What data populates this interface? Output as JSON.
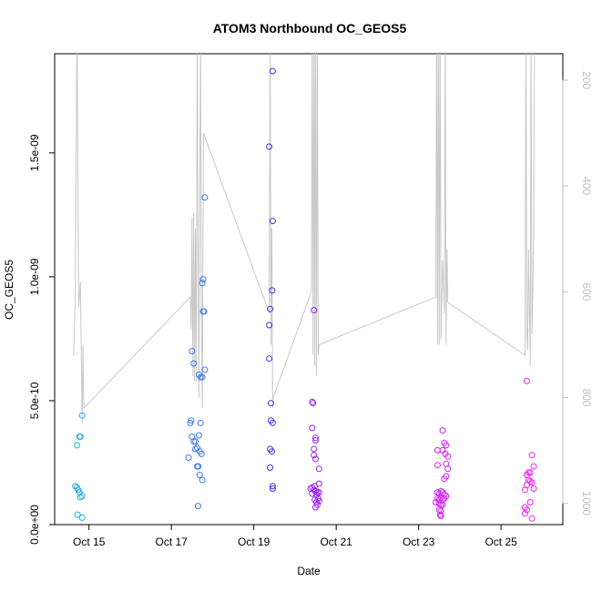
{
  "chart_data": {
    "type": "scatter",
    "title": "ATOM3 Northbound OC_GEOS5",
    "xlabel": "Date",
    "ylabel": "OC_GEOS5",
    "xlim": [
      "2017-10-14 04:00",
      "2017-10-26 12:00"
    ],
    "ylim": [
      0,
      1.9e-09
    ],
    "x_ticks": [
      {
        "label": "Oct 15",
        "value": "2017-10-15 00:00"
      },
      {
        "label": "Oct 17",
        "value": "2017-10-17 00:00"
      },
      {
        "label": "Oct 19",
        "value": "2017-10-19 00:00"
      },
      {
        "label": "Oct 21",
        "value": "2017-10-21 00:00"
      },
      {
        "label": "Oct 23",
        "value": "2017-10-23 00:00"
      },
      {
        "label": "Oct 25",
        "value": "2017-10-25 00:00"
      }
    ],
    "y_ticks": [
      {
        "label": "0.0e+00",
        "value": 0
      },
      {
        "label": "5.0e-10",
        "value": 5e-10
      },
      {
        "label": "1.0e-09",
        "value": 1e-09
      },
      {
        "label": "1.5e-09",
        "value": 1.5e-09
      }
    ],
    "y2_axis": {
      "label": "",
      "scale": "pressure (reversed)",
      "lim": [
        1040,
        150
      ],
      "ticks": [
        200,
        400,
        600,
        800,
        1000
      ],
      "color": "#bebebe"
    },
    "grid": false,
    "marker": "open-circle",
    "series": [
      {
        "color": "#22aaee",
        "points": [
          [
            "2017-10-14 17:00",
            3.2e-10
          ],
          [
            "2017-10-14 18:30",
            3.55e-10
          ],
          [
            "2017-10-14 19:00",
            3.55e-10
          ],
          [
            "2017-10-14 20:00",
            4.4e-10
          ],
          [
            "2017-10-14 16:00",
            1.55e-10
          ],
          [
            "2017-10-14 17:00",
            1.5e-10
          ],
          [
            "2017-10-14 17:40",
            1.4e-10
          ],
          [
            "2017-10-14 18:30",
            1.3e-10
          ],
          [
            "2017-10-14 19:00",
            1.1e-10
          ],
          [
            "2017-10-14 20:00",
            1.15e-10
          ],
          [
            "2017-10-14 17:20",
            4e-11
          ],
          [
            "2017-10-14 20:00",
            2.8e-11
          ]
        ]
      },
      {
        "color": "#3c78f0",
        "points": [
          [
            "2017-10-17 11:00",
            4.1e-10
          ],
          [
            "2017-10-17 11:30",
            4.2e-10
          ],
          [
            "2017-10-17 12:00",
            7e-10
          ],
          [
            "2017-10-17 13:00",
            6.5e-10
          ],
          [
            "2017-10-17 12:00",
            3.55e-10
          ],
          [
            "2017-10-17 13:00",
            3.35e-10
          ],
          [
            "2017-10-17 14:00",
            3.35e-10
          ],
          [
            "2017-10-17 14:00",
            3.05e-10
          ],
          [
            "2017-10-17 15:00",
            3.1e-10
          ],
          [
            "2017-10-17 16:00",
            3.6e-10
          ],
          [
            "2017-10-17 17:00",
            4.1e-10
          ],
          [
            "2017-10-17 16:00",
            6.05e-10
          ],
          [
            "2017-10-17 17:00",
            5.95e-10
          ],
          [
            "2017-10-17 18:00",
            5.95e-10
          ],
          [
            "2017-10-17 18:00",
            9.75e-10
          ],
          [
            "2017-10-17 18:30",
            9.9e-10
          ],
          [
            "2017-10-17 18:30",
            8.6e-10
          ],
          [
            "2017-10-17 19:00",
            8.6e-10
          ],
          [
            "2017-10-17 19:30",
            1.32e-09
          ],
          [
            "2017-10-17 19:30",
            6.25e-10
          ],
          [
            "2017-10-17 10:00",
            2.7e-10
          ],
          [
            "2017-10-17 15:00",
            2.35e-10
          ],
          [
            "2017-10-17 15:40",
            2.35e-10
          ],
          [
            "2017-10-17 16:30",
            2.95e-10
          ],
          [
            "2017-10-17 17:30",
            2.85e-10
          ],
          [
            "2017-10-17 16:30",
            2e-10
          ],
          [
            "2017-10-17 18:00",
            1.8e-10
          ],
          [
            "2017-10-17 15:30",
            7.5e-11
          ]
        ]
      },
      {
        "color": "#3c32ee",
        "points": [
          [
            "2017-10-19 11:00",
            1.83e-09
          ],
          [
            "2017-10-19 09:00",
            1.525e-09
          ],
          [
            "2017-10-19 11:00",
            1.225e-09
          ],
          [
            "2017-10-19 10:40",
            9.45e-10
          ],
          [
            "2017-10-19 09:30",
            8.7e-10
          ],
          [
            "2017-10-19 09:00",
            8.05e-10
          ],
          [
            "2017-10-19 09:00",
            6.7e-10
          ],
          [
            "2017-10-19 10:00",
            4.9e-10
          ],
          [
            "2017-10-19 10:00",
            4.2e-10
          ],
          [
            "2017-10-19 11:00",
            4.1e-10
          ],
          [
            "2017-10-19 09:30",
            3.05e-10
          ],
          [
            "2017-10-19 10:30",
            2.95e-10
          ],
          [
            "2017-10-19 09:30",
            2.3e-10
          ],
          [
            "2017-10-19 11:00",
            1.55e-10
          ],
          [
            "2017-10-19 11:00",
            1.45e-10
          ]
        ]
      },
      {
        "color": "#9a22ee",
        "points": [
          [
            "2017-10-20 11:00",
            8.65e-10
          ],
          [
            "2017-10-20 10:00",
            4.95e-10
          ],
          [
            "2017-10-20 10:30",
            4.9e-10
          ],
          [
            "2017-10-20 10:00",
            3.9e-10
          ],
          [
            "2017-10-20 12:00",
            3.5e-10
          ],
          [
            "2017-10-20 12:00",
            3.4e-10
          ],
          [
            "2017-10-20 11:00",
            3.05e-10
          ],
          [
            "2017-10-20 11:00",
            2.8e-10
          ],
          [
            "2017-10-20 12:00",
            2.65e-10
          ],
          [
            "2017-10-20 14:00",
            2.25e-10
          ],
          [
            "2017-10-20 14:00",
            1.65e-10
          ],
          [
            "2017-10-20 09:00",
            1.45e-10
          ],
          [
            "2017-10-20 10:00",
            1.5e-10
          ],
          [
            "2017-10-20 10:00",
            1.25e-10
          ],
          [
            "2017-10-20 11:00",
            1.4e-10
          ],
          [
            "2017-10-20 11:30",
            1.55e-10
          ],
          [
            "2017-10-20 12:00",
            1.35e-10
          ],
          [
            "2017-10-20 12:30",
            1.2e-10
          ],
          [
            "2017-10-20 13:00",
            1.3e-10
          ],
          [
            "2017-10-20 14:00",
            1.3e-10
          ],
          [
            "2017-10-20 11:30",
            1e-10
          ],
          [
            "2017-10-20 12:30",
            9e-11
          ],
          [
            "2017-10-20 13:00",
            8e-11
          ],
          [
            "2017-10-20 14:00",
            9.5e-11
          ],
          [
            "2017-10-20 12:00",
            7e-11
          ],
          [
            "2017-10-20 13:30",
            1.05e-10
          ]
        ]
      },
      {
        "color": "#cc22ee",
        "points": [
          [
            "2017-10-23 11:00",
            3e-10
          ],
          [
            "2017-10-23 11:00",
            2.4e-10
          ],
          [
            "2017-10-23 14:00",
            3.8e-10
          ],
          [
            "2017-10-23 15:00",
            3.3e-10
          ],
          [
            "2017-10-23 14:00",
            3e-10
          ],
          [
            "2017-10-23 16:00",
            3.2e-10
          ],
          [
            "2017-10-23 15:30",
            2.85e-10
          ],
          [
            "2017-10-23 17:00",
            2.75e-10
          ],
          [
            "2017-10-23 16:00",
            2.45e-10
          ],
          [
            "2017-10-23 17:00",
            2.25e-10
          ],
          [
            "2017-10-23 15:00",
            1.85e-10
          ],
          [
            "2017-10-23 16:00",
            1.95e-10
          ],
          [
            "2017-10-23 11:00",
            1.3e-10
          ],
          [
            "2017-10-23 12:00",
            1.25e-10
          ],
          [
            "2017-10-23 13:00",
            1.35e-10
          ],
          [
            "2017-10-23 14:00",
            1.3e-10
          ],
          [
            "2017-10-23 15:00",
            1.2e-10
          ],
          [
            "2017-10-23 11:00",
            1.05e-10
          ],
          [
            "2017-10-23 12:00",
            1e-10
          ],
          [
            "2017-10-23 13:00",
            1.1e-10
          ],
          [
            "2017-10-23 14:00",
            1e-10
          ],
          [
            "2017-10-23 15:00",
            1.05e-10
          ],
          [
            "2017-10-23 16:00",
            1.15e-10
          ],
          [
            "2017-10-23 10:00",
            9e-11
          ],
          [
            "2017-10-23 12:00",
            8.5e-11
          ],
          [
            "2017-10-23 13:00",
            8e-11
          ],
          [
            "2017-10-23 14:00",
            8e-11
          ],
          [
            "2017-10-23 12:00",
            6e-11
          ],
          [
            "2017-10-23 13:00",
            5.5e-11
          ],
          [
            "2017-10-23 12:30",
            4e-11
          ],
          [
            "2017-10-23 13:00",
            3.5e-11
          ]
        ]
      },
      {
        "color": "#ee22ee",
        "points": [
          [
            "2017-10-25 15:00",
            5.8e-10
          ],
          [
            "2017-10-25 15:00",
            2e-10
          ],
          [
            "2017-10-25 16:00",
            2.1e-10
          ],
          [
            "2017-10-25 17:00",
            2.1e-10
          ],
          [
            "2017-10-25 19:00",
            2.35e-10
          ],
          [
            "2017-10-25 18:00",
            2.8e-10
          ],
          [
            "2017-10-25 16:00",
            1.8e-10
          ],
          [
            "2017-10-25 17:00",
            1.75e-10
          ],
          [
            "2017-10-25 18:00",
            1.7e-10
          ],
          [
            "2017-10-25 15:00",
            1.6e-10
          ],
          [
            "2017-10-25 14:00",
            1.4e-10
          ],
          [
            "2017-10-25 19:00",
            1.45e-10
          ],
          [
            "2017-10-25 17:00",
            9e-11
          ],
          [
            "2017-10-25 14:00",
            7e-11
          ],
          [
            "2017-10-25 15:00",
            6e-11
          ],
          [
            "2017-10-25 14:00",
            4.5e-11
          ],
          [
            "2017-10-25 18:00",
            2.5e-11
          ]
        ]
      }
    ],
    "pressure_line": {
      "color": "#c8c8c8",
      "points": [
        [
          "2017-10-14 15:00",
          720
        ],
        [
          "2017-10-14 16:00",
          620
        ],
        [
          "2017-10-14 17:00",
          80
        ],
        [
          "2017-10-14 18:00",
          630
        ],
        [
          "2017-10-14 19:00",
          580
        ],
        [
          "2017-10-14 20:00",
          850
        ],
        [
          "2017-10-14 20:30",
          700
        ],
        [
          "2017-10-14 21:00",
          820
        ],
        [
          "2017-10-17 11:00",
          610
        ],
        [
          "2017-10-17 11:30",
          670
        ],
        [
          "2017-10-17 12:00",
          460
        ],
        [
          "2017-10-17 12:30",
          760
        ],
        [
          "2017-10-17 13:00",
          450
        ],
        [
          "2017-10-17 13:30",
          770
        ],
        [
          "2017-10-17 14:00",
          480
        ],
        [
          "2017-10-17 14:30",
          770
        ],
        [
          "2017-10-17 15:00",
          80
        ],
        [
          "2017-10-17 15:40",
          620
        ],
        [
          "2017-10-17 16:00",
          800
        ],
        [
          "2017-10-17 17:00",
          100
        ],
        [
          "2017-10-17 17:30",
          650
        ],
        [
          "2017-10-17 18:00",
          820
        ],
        [
          "2017-10-17 18:40",
          300
        ],
        [
          "2017-10-19 09:00",
          640
        ],
        [
          "2017-10-19 09:30",
          80
        ],
        [
          "2017-10-19 10:00",
          700
        ],
        [
          "2017-10-19 10:30",
          480
        ],
        [
          "2017-10-19 11:00",
          820
        ],
        [
          "2017-10-19 11:20",
          800
        ],
        [
          "2017-10-20 09:30",
          600
        ],
        [
          "2017-10-20 10:00",
          80
        ],
        [
          "2017-10-20 10:30",
          720
        ],
        [
          "2017-10-20 11:00",
          80
        ],
        [
          "2017-10-20 11:30",
          740
        ],
        [
          "2017-10-20 12:00",
          80
        ],
        [
          "2017-10-20 12:30",
          760
        ],
        [
          "2017-10-20 13:00",
          80
        ],
        [
          "2017-10-20 13:30",
          720
        ],
        [
          "2017-10-20 14:00",
          700
        ],
        [
          "2017-10-23 10:00",
          610
        ],
        [
          "2017-10-23 10:30",
          80
        ],
        [
          "2017-10-23 11:00",
          700
        ],
        [
          "2017-10-23 11:30",
          80
        ],
        [
          "2017-10-23 12:00",
          700
        ],
        [
          "2017-10-23 12:30",
          80
        ],
        [
          "2017-10-23 13:00",
          690
        ],
        [
          "2017-10-23 14:00",
          540
        ],
        [
          "2017-10-23 15:00",
          640
        ],
        [
          "2017-10-23 15:30",
          80
        ],
        [
          "2017-10-23 16:00",
          700
        ],
        [
          "2017-10-23 16:30",
          520
        ],
        [
          "2017-10-23 17:00",
          620
        ],
        [
          "2017-10-25 14:00",
          720
        ],
        [
          "2017-10-25 14:30",
          80
        ],
        [
          "2017-10-25 15:00",
          680
        ],
        [
          "2017-10-25 15:30",
          710
        ],
        [
          "2017-10-25 16:00",
          520
        ],
        [
          "2017-10-25 17:00",
          740
        ],
        [
          "2017-10-25 17:30",
          80
        ],
        [
          "2017-10-25 18:00",
          680
        ],
        [
          "2017-10-25 19:00",
          500
        ],
        [
          "2017-10-25 19:30",
          80
        ]
      ]
    }
  }
}
